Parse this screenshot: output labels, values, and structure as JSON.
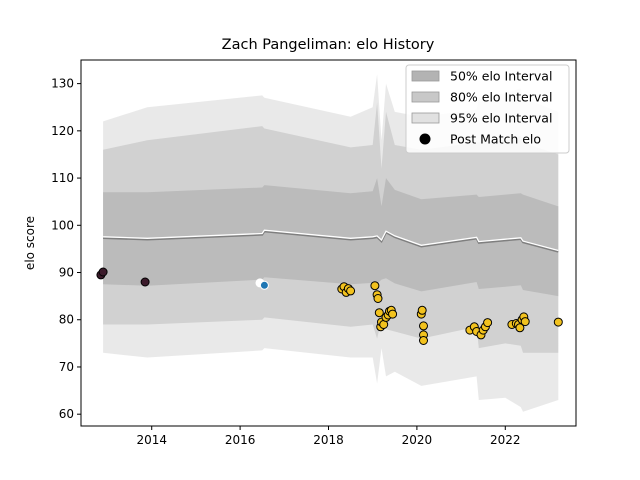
{
  "chart_data": {
    "type": "scatter",
    "title": "Zach Pangeliman: elo History",
    "xlabel": "",
    "ylabel": "elo score",
    "xlim": [
      2012.4,
      2023.6
    ],
    "ylim": [
      57.5,
      135
    ],
    "x_ticks": [
      2014,
      2016,
      2018,
      2020,
      2022
    ],
    "y_ticks": [
      60,
      70,
      80,
      90,
      100,
      110,
      120,
      130
    ],
    "grid": false,
    "legend_position": "top-right",
    "legend": [
      {
        "label": "50% elo Interval",
        "kind": "band",
        "color": "#b3b3b3"
      },
      {
        "label": "80% elo Interval",
        "kind": "band",
        "color": "#c8c8c8"
      },
      {
        "label": "95% elo Interval",
        "kind": "band",
        "color": "#e1e1e1"
      },
      {
        "label": "Post Match elo",
        "kind": "marker",
        "color": "#000000"
      }
    ],
    "bands": {
      "x": [
        2012.9,
        2013.9,
        2016.5,
        2016.55,
        2018.5,
        2019.0,
        2019.1,
        2019.2,
        2019.3,
        2019.5,
        2020.1,
        2021.35,
        2021.4,
        2022.0,
        2022.35,
        2022.4,
        2023.2
      ],
      "mean": [
        97.3,
        97.0,
        98.0,
        98.7,
        97.0,
        97.3,
        97.5,
        96.6,
        98.5,
        97.5,
        95.5,
        97.2,
        96.3,
        96.8,
        97.1,
        96.4,
        94.4
      ],
      "i50": {
        "lower": [
          87.5,
          87.2,
          88.5,
          89.0,
          87.5,
          87.8,
          87.6,
          88.5,
          88.8,
          87.7,
          86.0,
          88.0,
          86.5,
          87.0,
          87.3,
          86.3,
          85.0
        ],
        "upper": [
          107.0,
          107.0,
          108.0,
          108.5,
          106.8,
          107.2,
          110.0,
          104.0,
          110.0,
          107.5,
          105.5,
          106.5,
          106.0,
          106.5,
          106.8,
          106.5,
          104.0
        ]
      },
      "i80": {
        "lower": [
          79.0,
          79.0,
          80.0,
          80.5,
          78.5,
          79.0,
          76.0,
          80.0,
          78.0,
          77.5,
          76.0,
          78.5,
          74.0,
          75.0,
          74.5,
          73.0,
          73.0
        ],
        "upper": [
          116.0,
          118.0,
          121.0,
          120.5,
          116.5,
          117.0,
          126.0,
          112.0,
          124.0,
          117.0,
          116.0,
          117.5,
          117.5,
          118.0,
          119.0,
          117.5,
          115.0
        ]
      },
      "i95": {
        "lower": [
          73.0,
          72.0,
          73.5,
          74.0,
          72.0,
          72.0,
          66.5,
          74.0,
          68.0,
          69.0,
          66.0,
          68.0,
          63.0,
          63.5,
          61.5,
          60.5,
          63.0
        ],
        "upper": [
          122.0,
          125.0,
          127.5,
          127.0,
          123.0,
          125.0,
          132.0,
          118.0,
          130.0,
          124.0,
          123.0,
          124.5,
          127.0,
          128.0,
          129.0,
          127.0,
          124.0
        ]
      }
    },
    "series": [
      {
        "color": "#3b1a2a",
        "points": [
          [
            2012.85,
            89.5
          ],
          [
            2012.9,
            90.1
          ],
          [
            2013.85,
            88.0
          ]
        ]
      },
      {
        "color": "#ffffff",
        "points": [
          [
            2016.45,
            87.8
          ]
        ]
      },
      {
        "color": "#1f77b4",
        "points": [
          [
            2016.55,
            87.3
          ]
        ]
      },
      {
        "color": "#f2c21e",
        "points": [
          [
            2018.3,
            86.5
          ],
          [
            2018.35,
            87.0
          ],
          [
            2018.4,
            85.8
          ],
          [
            2018.45,
            86.6
          ],
          [
            2018.5,
            86.1
          ],
          [
            2019.05,
            87.2
          ],
          [
            2019.1,
            85.3
          ],
          [
            2019.12,
            84.5
          ],
          [
            2019.15,
            81.5
          ],
          [
            2019.18,
            78.5
          ],
          [
            2019.2,
            79.5
          ],
          [
            2019.25,
            79.0
          ],
          [
            2019.3,
            80.5
          ],
          [
            2019.35,
            81.0
          ],
          [
            2019.38,
            81.8
          ],
          [
            2019.42,
            82.0
          ],
          [
            2019.45,
            81.2
          ],
          [
            2020.1,
            81.2
          ],
          [
            2020.12,
            82.0
          ],
          [
            2020.15,
            78.7
          ],
          [
            2020.15,
            76.8
          ],
          [
            2020.15,
            75.6
          ],
          [
            2021.2,
            77.8
          ],
          [
            2021.3,
            78.5
          ],
          [
            2021.35,
            77.5
          ],
          [
            2021.45,
            76.8
          ],
          [
            2021.5,
            77.8
          ],
          [
            2021.55,
            78.5
          ],
          [
            2021.6,
            79.4
          ],
          [
            2022.15,
            79.0
          ],
          [
            2022.25,
            79.2
          ],
          [
            2022.3,
            79.0
          ],
          [
            2022.33,
            78.3
          ],
          [
            2022.38,
            80.0
          ],
          [
            2022.42,
            80.6
          ],
          [
            2022.45,
            79.6
          ],
          [
            2023.2,
            79.5
          ]
        ]
      }
    ]
  }
}
